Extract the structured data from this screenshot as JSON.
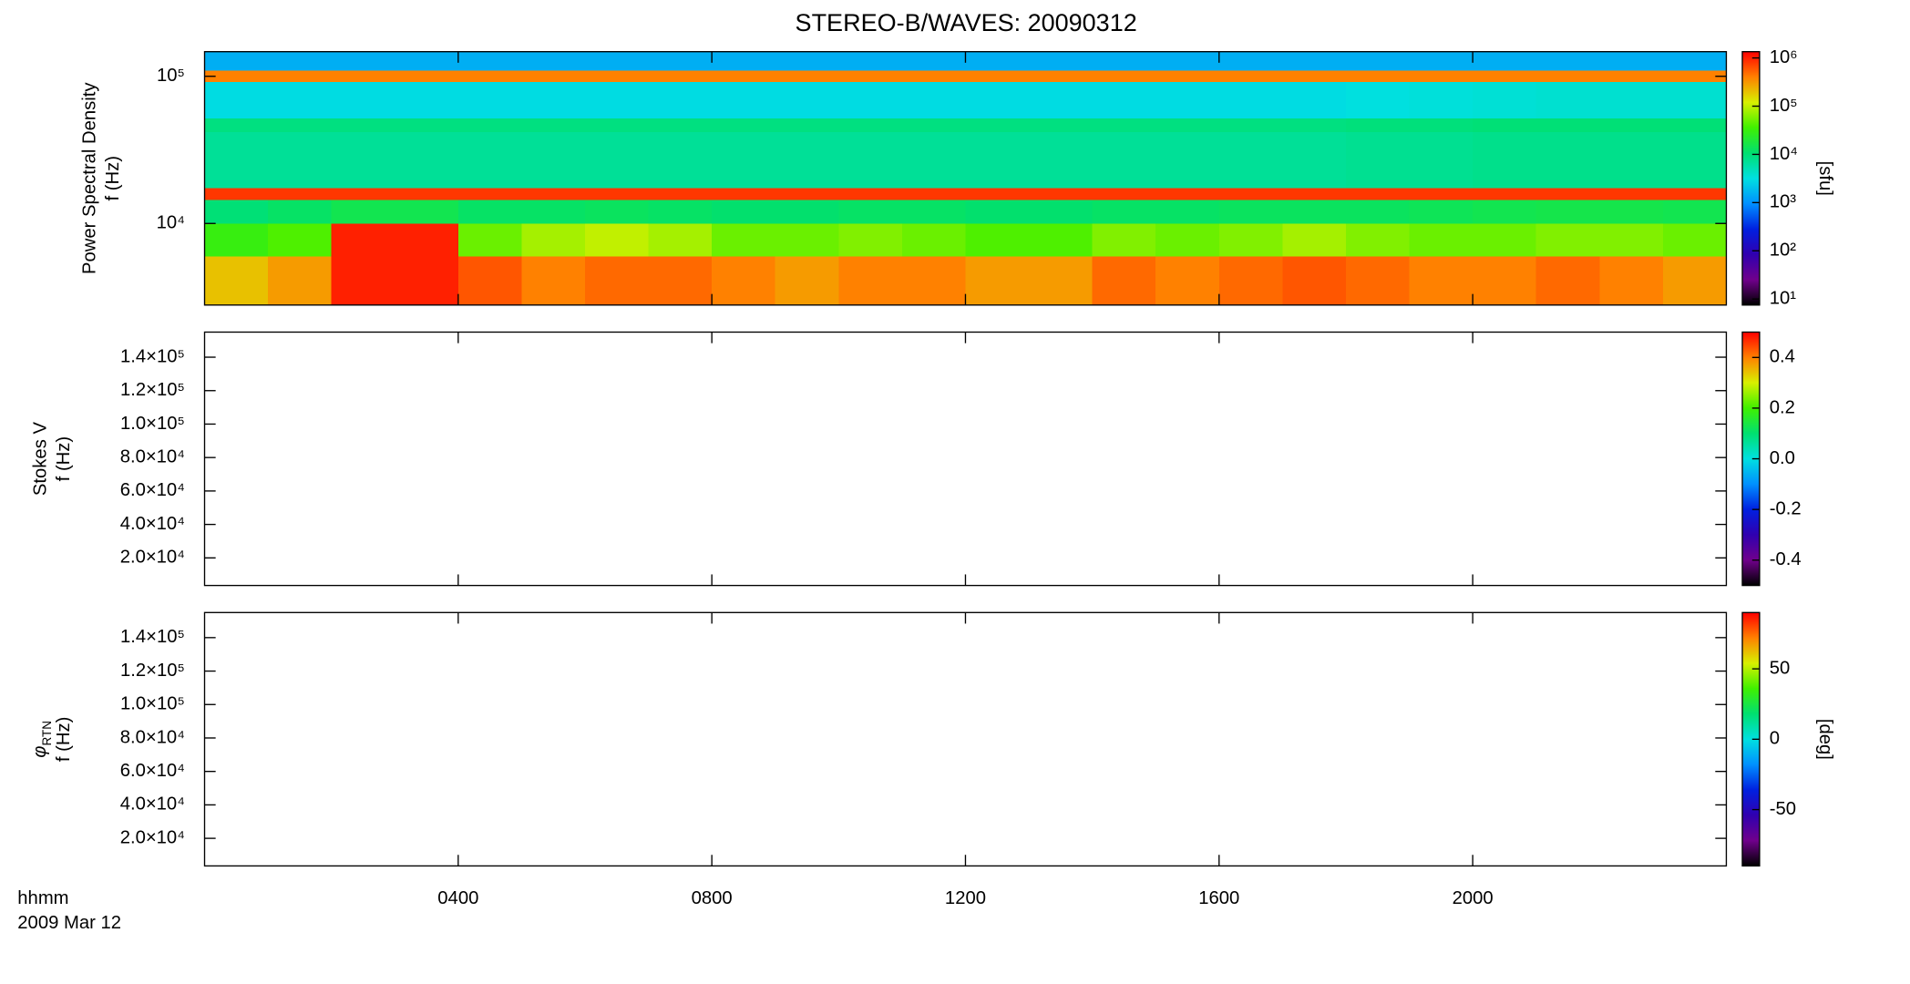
{
  "chart_data": [
    {
      "type": "heatmap",
      "title": "STEREO-B/WAVES: 20090312",
      "ylabel": "Power Spectral Density",
      "ylabel2": "f (Hz)",
      "yscale": "log",
      "ylim": [
        2790,
        147000
      ],
      "yticks": [
        {
          "value": 10000,
          "label": "10⁴"
        },
        {
          "value": 100000,
          "label": "10⁵"
        }
      ],
      "x_edges": [
        0,
        1,
        2,
        3,
        4,
        5,
        6,
        7,
        8,
        9,
        10,
        11,
        12,
        13,
        14,
        15,
        16,
        17,
        18,
        19,
        20,
        21,
        22,
        23,
        24
      ],
      "y_edges": [
        2790,
        6000,
        10000,
        14500,
        17500,
        42000,
        52000,
        92000,
        110000,
        147000
      ],
      "values": [
        [
          200000,
          300000,
          1000000,
          1000000,
          600000,
          400000,
          500000,
          500000,
          400000,
          300000,
          400000,
          400000,
          300000,
          300000,
          500000,
          400000,
          500000,
          600000,
          500000,
          400000,
          400000,
          500000,
          400000,
          300000
        ],
        [
          30000,
          40000,
          1000000,
          1000000,
          50000,
          80000,
          100000,
          80000,
          50000,
          50000,
          60000,
          50000,
          40000,
          40000,
          60000,
          50000,
          60000,
          80000,
          60000,
          50000,
          50000,
          60000,
          60000,
          50000
        ],
        [
          10000,
          12000,
          15000,
          15000,
          12000,
          12000,
          13000,
          12000,
          11000,
          11000,
          12000,
          12000,
          11000,
          11000,
          12000,
          12000,
          13000,
          13000,
          13000,
          14000,
          15000,
          16000,
          16000,
          15000
        ],
        [
          800000,
          800000,
          800000,
          800000,
          800000,
          800000,
          800000,
          800000,
          800000,
          800000,
          800000,
          800000,
          800000,
          800000,
          800000,
          800000,
          800000,
          800000,
          800000,
          800000,
          800000,
          800000,
          800000,
          800000
        ],
        [
          7000,
          7000,
          7000,
          7000,
          7000,
          7000,
          7000,
          7000,
          7000,
          7000,
          7000,
          7000,
          7000,
          7000,
          7000,
          7000,
          7000,
          7000,
          7500,
          7500,
          8000,
          8000,
          8000,
          8000
        ],
        [
          9000,
          9000,
          9000,
          9000,
          9000,
          9000,
          9000,
          9000,
          9000,
          9000,
          9000,
          9000,
          9000,
          9000,
          9000,
          9000,
          9000,
          9000,
          9500,
          9500,
          10000,
          10000,
          10000,
          10000
        ],
        [
          3000,
          3000,
          3000,
          3000,
          3000,
          3000,
          3000,
          3000,
          3000,
          3000,
          3000,
          3000,
          3000,
          3000,
          3000,
          3000,
          3000,
          3000,
          3200,
          3400,
          3600,
          3800,
          3800,
          3800
        ],
        [
          400000,
          400000,
          400000,
          400000,
          400000,
          400000,
          400000,
          400000,
          400000,
          400000,
          400000,
          400000,
          400000,
          400000,
          400000,
          400000,
          400000,
          400000,
          400000,
          400000,
          400000,
          400000,
          400000,
          400000
        ],
        [
          1500,
          1500,
          1500,
          1500,
          1500,
          1500,
          1500,
          1500,
          1500,
          1500,
          1500,
          1500,
          1500,
          1500,
          1500,
          1500,
          1500,
          1500,
          1500,
          1500,
          1500,
          1500,
          1500,
          1500
        ]
      ],
      "zscale": "log",
      "zlim": [
        7.5,
        1350000
      ],
      "zticks": [
        {
          "value": 10,
          "label": "10¹"
        },
        {
          "value": 100,
          "label": "10²"
        },
        {
          "value": 1000,
          "label": "10³"
        },
        {
          "value": 10000,
          "label": "10⁴"
        },
        {
          "value": 100000,
          "label": "10⁵"
        },
        {
          "value": 1000000,
          "label": "10⁶"
        }
      ],
      "zlabel": "[sfu]",
      "colormap": [
        "#000000",
        "#70008c",
        "#3000b0",
        "#0020e0",
        "#0090ff",
        "#00e0e0",
        "#00e070",
        "#40f000",
        "#d8f000",
        "#ff8000",
        "#ff0000"
      ]
    },
    {
      "type": "heatmap",
      "ylabel": "Stokes V",
      "ylabel2": "f (Hz)",
      "yscale": "linear",
      "ylim": [
        3500,
        155000
      ],
      "yticks": [
        {
          "value": 20000,
          "label": "2.0×10⁴"
        },
        {
          "value": 40000,
          "label": "4.0×10⁴"
        },
        {
          "value": 60000,
          "label": "6.0×10⁴"
        },
        {
          "value": 80000,
          "label": "8.0×10⁴"
        },
        {
          "value": 100000,
          "label": "1.0×10⁵"
        },
        {
          "value": 120000,
          "label": "1.2×10⁵"
        },
        {
          "value": 140000,
          "label": "1.4×10⁵"
        }
      ],
      "zscale": "linear",
      "zlim": [
        -0.5,
        0.5
      ],
      "zticks": [
        -0.4,
        -0.2,
        {
          "value": 0,
          "label": "0.0"
        },
        0.2,
        0.4
      ]
    },
    {
      "type": "heatmap",
      "ylabel": "φ",
      "ylabel_sub": "RTN",
      "ylabel2": "f (Hz)",
      "yscale": "linear",
      "ylim": [
        3500,
        155000
      ],
      "yticks": [
        {
          "value": 20000,
          "label": "2.0×10⁴"
        },
        {
          "value": 40000,
          "label": "4.0×10⁴"
        },
        {
          "value": 60000,
          "label": "6.0×10⁴"
        },
        {
          "value": 80000,
          "label": "8.0×10⁴"
        },
        {
          "value": 100000,
          "label": "1.0×10⁵"
        },
        {
          "value": 120000,
          "label": "1.2×10⁵"
        },
        {
          "value": 140000,
          "label": "1.4×10⁵"
        }
      ],
      "zscale": "linear",
      "zlim": [
        -90,
        90
      ],
      "zticks": [
        -50,
        0,
        50
      ],
      "zlabel": "[deg]",
      "xlim": [
        0,
        24
      ],
      "xticks": [
        {
          "value": 4,
          "label": "0400"
        },
        {
          "value": 8,
          "label": "0800"
        },
        {
          "value": 12,
          "label": "1200"
        },
        {
          "value": 16,
          "label": "1600"
        },
        {
          "value": 20,
          "label": "2000"
        }
      ],
      "xlabel": "hhmm",
      "date": "2009 Mar 12"
    }
  ]
}
